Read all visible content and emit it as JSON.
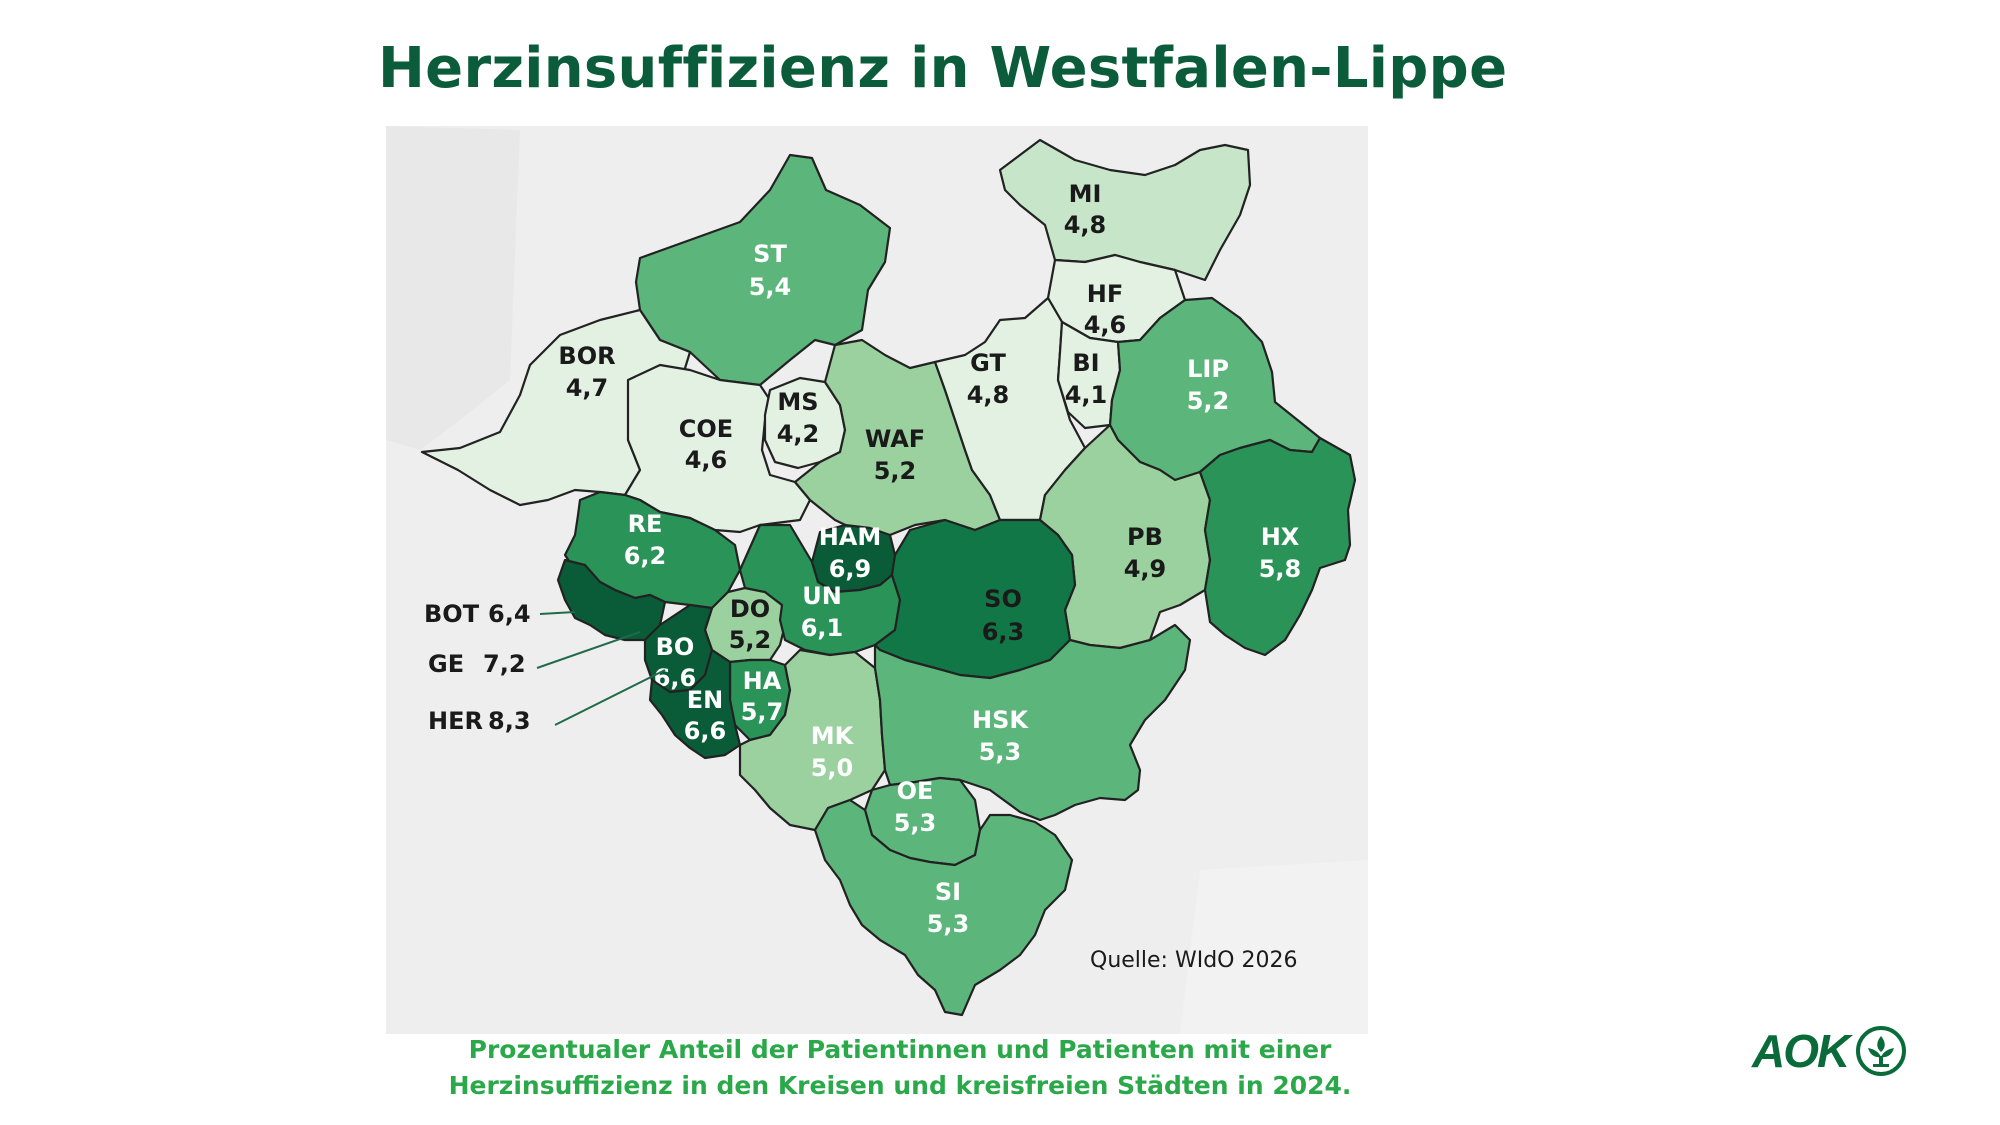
{
  "title": "Herzinsuffizienz in Westfalen-Lippe",
  "caption_line1": "Prozentualer Anteil der Patientinnen und Patienten mit einer",
  "caption_line2": "Herzinsuffizienz in den Kreisen und kreisfreien Städten in 2024.",
  "source": "Quelle: WIdO 2026",
  "logo_text": "AOK",
  "logo_icon": "tree-in-circle-icon",
  "colors": {
    "scale_lightest": "#e3f1e3",
    "scale_light": "#c7e5c8",
    "scale_mid": "#9bd09f",
    "scale_medium": "#5cb57a",
    "scale_dark": "#2a9358",
    "scale_darker": "#127746",
    "scale_darkest": "#0a5c38",
    "title": "#0a5c3a",
    "caption": "#2aa84a"
  },
  "regions": [
    {
      "code": "ST",
      "value": "5,4"
    },
    {
      "code": "MI",
      "value": "4,8"
    },
    {
      "code": "HF",
      "value": "4,6"
    },
    {
      "code": "BOR",
      "value": "4,7"
    },
    {
      "code": "COE",
      "value": "4,6"
    },
    {
      "code": "MS",
      "value": "4,2"
    },
    {
      "code": "WAF",
      "value": "5,2"
    },
    {
      "code": "GT",
      "value": "4,8"
    },
    {
      "code": "BI",
      "value": "4,1"
    },
    {
      "code": "LIP",
      "value": "5,2"
    },
    {
      "code": "RE",
      "value": "6,2"
    },
    {
      "code": "HAM",
      "value": "6,9"
    },
    {
      "code": "PB",
      "value": "4,9"
    },
    {
      "code": "HX",
      "value": "5,8"
    },
    {
      "code": "DO",
      "value": "5,2"
    },
    {
      "code": "UN",
      "value": "6,1"
    },
    {
      "code": "SO",
      "value": "6,3"
    },
    {
      "code": "BO",
      "value": "6,6"
    },
    {
      "code": "HA",
      "value": "5,7"
    },
    {
      "code": "EN",
      "value": "6,6"
    },
    {
      "code": "MK",
      "value": "5,0"
    },
    {
      "code": "HSK",
      "value": "5,3"
    },
    {
      "code": "OE",
      "value": "5,3"
    },
    {
      "code": "SI",
      "value": "5,3"
    }
  ],
  "callouts": [
    {
      "code": "BOT",
      "value": "6,4"
    },
    {
      "code": "GE",
      "value": "7,2"
    },
    {
      "code": "HER",
      "value": "8,3"
    }
  ]
}
